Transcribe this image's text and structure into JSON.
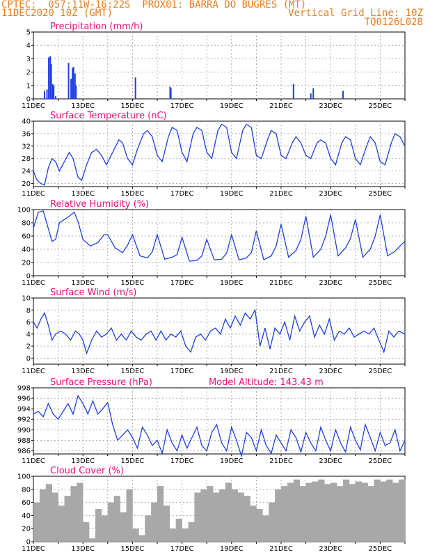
{
  "header": {
    "left_line1": "CPTEC:  057:11W-16:22S  PROX01: BARRA DO BUGRES (MT)",
    "left_line2": "11DEC2020 10Z (GMT)",
    "right_line2": "Vertical Grid Line: 10Z",
    "right_line3": "TQ0126L028"
  },
  "colors": {
    "header": "#e87d1e",
    "title": "#e8107c",
    "series": "#1f3fe0",
    "cloud": "#a8a8a8",
    "grid": "#9a9a9a"
  },
  "chart_data": [
    {
      "id": "precip",
      "type": "bar",
      "title": "Precipitation (mm/h)",
      "ylim": [
        0,
        5
      ],
      "yticks": [
        0,
        1,
        2,
        3,
        4,
        5
      ],
      "xticklabels": [
        "11DEC",
        "13DEC",
        "15DEC",
        "17DEC",
        "19DEC",
        "21DEC",
        "23DEC",
        "25DEC"
      ],
      "x_days": [
        0.45,
        0.55,
        0.62,
        0.68,
        0.72,
        0.78,
        0.82,
        0.9,
        1.42,
        1.52,
        1.58,
        1.62,
        1.68,
        1.72,
        4.12,
        5.52,
        5.55,
        10.5,
        11.2,
        11.3,
        12.5
      ],
      "values": [
        0.6,
        0.7,
        3.1,
        3.2,
        2.6,
        1.1,
        1.0,
        0.2,
        2.7,
        1.5,
        2.3,
        2.4,
        1.9,
        1.0,
        1.6,
        0.9,
        0.8,
        1.1,
        0.4,
        0.8,
        0.6
      ]
    },
    {
      "id": "temp",
      "type": "line",
      "title": "Surface Temperature (nC)",
      "ylim": [
        19,
        40
      ],
      "yticks": [
        20,
        24,
        28,
        32,
        36,
        40
      ],
      "xticklabels": [
        "11DEC",
        "13DEC",
        "15DEC",
        "17DEC",
        "19DEC",
        "21DEC",
        "23DEC",
        "25DEC"
      ],
      "x_days": [
        0,
        0.15,
        0.3,
        0.45,
        0.6,
        0.75,
        0.9,
        1.05,
        1.25,
        1.45,
        1.6,
        1.8,
        1.95,
        2.15,
        2.35,
        2.55,
        2.75,
        2.95,
        3.2,
        3.45,
        3.6,
        3.8,
        4.0,
        4.2,
        4.45,
        4.6,
        4.8,
        5.0,
        5.2,
        5.45,
        5.6,
        5.8,
        6.0,
        6.2,
        6.45,
        6.6,
        6.8,
        7.0,
        7.2,
        7.45,
        7.6,
        7.8,
        8.0,
        8.2,
        8.45,
        8.6,
        8.8,
        9.0,
        9.2,
        9.45,
        9.6,
        9.8,
        10.0,
        10.2,
        10.45,
        10.6,
        10.8,
        11.0,
        11.2,
        11.45,
        11.6,
        11.8,
        12.0,
        12.2,
        12.45,
        12.6,
        12.8,
        13.0,
        13.2,
        13.45,
        13.6,
        13.8,
        14.0,
        14.2,
        14.45,
        14.6,
        14.8,
        15.0
      ],
      "values": [
        24,
        21,
        20,
        19.5,
        25,
        28,
        27,
        24,
        27,
        30,
        28,
        22,
        21,
        26,
        30,
        31,
        29,
        26,
        30,
        34,
        33,
        28,
        26,
        31,
        36,
        37,
        35,
        29,
        27,
        35,
        38,
        37,
        30,
        27,
        36,
        38,
        37,
        30,
        28,
        37,
        39,
        38,
        30,
        28,
        37,
        39,
        38,
        29,
        28,
        34,
        37,
        36,
        29,
        28,
        33,
        35,
        33,
        29,
        28,
        33,
        34,
        33,
        28,
        26,
        33,
        35,
        34,
        28,
        26,
        32,
        35,
        33,
        27,
        26,
        33,
        36,
        35,
        32
      ]
    },
    {
      "id": "rh",
      "type": "line",
      "title": "Relative Humidity (%)",
      "ylim": [
        0,
        100
      ],
      "yticks": [
        0,
        20,
        40,
        60,
        80,
        100
      ],
      "xticklabels": [
        "11DEC",
        "13DEC",
        "15DEC",
        "17DEC",
        "19DEC",
        "21DEC",
        "23DEC",
        "25DEC"
      ],
      "x_days": [
        0,
        0.2,
        0.4,
        0.55,
        0.75,
        0.9,
        1.05,
        1.25,
        1.45,
        1.65,
        1.8,
        2.0,
        2.3,
        2.6,
        2.85,
        3.0,
        3.3,
        3.6,
        3.8,
        4.0,
        4.3,
        4.6,
        4.8,
        5.0,
        5.3,
        5.6,
        5.8,
        6.0,
        6.3,
        6.6,
        6.8,
        7.0,
        7.3,
        7.6,
        7.8,
        8.0,
        8.3,
        8.6,
        8.8,
        9.0,
        9.3,
        9.6,
        9.8,
        10.0,
        10.3,
        10.6,
        10.8,
        11.0,
        11.3,
        11.6,
        11.8,
        12.0,
        12.3,
        12.6,
        12.8,
        13.0,
        13.3,
        13.6,
        13.8,
        14.0,
        14.3,
        14.6,
        14.8,
        15.0
      ],
      "values": [
        72,
        96,
        98,
        78,
        52,
        55,
        80,
        85,
        90,
        96,
        82,
        55,
        45,
        50,
        62,
        62,
        42,
        35,
        46,
        62,
        30,
        27,
        36,
        62,
        25,
        28,
        32,
        58,
        22,
        23,
        30,
        55,
        24,
        25,
        34,
        62,
        24,
        27,
        35,
        68,
        24,
        30,
        45,
        78,
        28,
        38,
        55,
        90,
        28,
        40,
        60,
        92,
        30,
        42,
        56,
        85,
        28,
        40,
        60,
        92,
        30,
        37,
        45,
        52
      ]
    },
    {
      "id": "wind",
      "type": "line",
      "title": "Surface Wind (m/s)",
      "ylim": [
        -1,
        10
      ],
      "yticks": [
        0,
        2,
        4,
        6,
        8,
        10
      ],
      "xticklabels": [
        "11DEC",
        "13DEC",
        "15DEC",
        "17DEC",
        "19DEC",
        "21DEC",
        "23DEC",
        "25DEC"
      ],
      "x_days": [
        0,
        0.15,
        0.3,
        0.45,
        0.6,
        0.75,
        0.9,
        1.1,
        1.3,
        1.5,
        1.7,
        1.85,
        2.0,
        2.15,
        2.35,
        2.55,
        2.75,
        2.95,
        3.15,
        3.35,
        3.55,
        3.75,
        3.95,
        4.15,
        4.35,
        4.55,
        4.75,
        4.95,
        5.15,
        5.35,
        5.55,
        5.75,
        5.95,
        6.15,
        6.35,
        6.55,
        6.75,
        6.95,
        7.15,
        7.35,
        7.55,
        7.75,
        7.95,
        8.15,
        8.35,
        8.55,
        8.75,
        8.95,
        9.15,
        9.35,
        9.55,
        9.75,
        9.95,
        10.15,
        10.35,
        10.55,
        10.75,
        10.95,
        11.15,
        11.35,
        11.55,
        11.75,
        11.95,
        12.15,
        12.35,
        12.55,
        12.75,
        12.95,
        13.15,
        13.35,
        13.55,
        13.75,
        13.95,
        14.15,
        14.35,
        14.55,
        14.75,
        15.0
      ],
      "values": [
        6,
        5,
        6.5,
        7.5,
        5.5,
        3,
        4,
        4.5,
        4,
        3,
        4.5,
        4,
        3,
        0.8,
        3,
        4.5,
        3.5,
        4,
        5,
        3,
        4,
        3,
        4.5,
        3.5,
        3,
        4,
        4.5,
        3,
        4.5,
        3,
        4,
        3.5,
        4.5,
        2,
        1,
        3.5,
        4,
        3,
        4.5,
        5,
        4,
        6.5,
        5,
        7,
        5.5,
        7.5,
        6.5,
        8,
        2,
        5,
        1.5,
        5,
        4,
        6,
        3,
        7,
        4.5,
        6,
        7,
        3.5,
        5.5,
        4,
        6.5,
        3,
        4.5,
        4,
        5,
        3.5,
        4,
        4.5,
        4,
        5,
        3,
        1,
        4.5,
        3.5,
        4.5,
        4
      ]
    },
    {
      "id": "pressure",
      "type": "line",
      "title": "Surface Pressure (hPa)",
      "annotation": "Model Altitude: 143.43 m",
      "ylim": [
        985.4,
        998
      ],
      "yticks": [
        986,
        988,
        990,
        992,
        994,
        996,
        998
      ],
      "xticklabels": [
        "11DEC",
        "13DEC",
        "15DEC",
        "17DEC",
        "19DEC",
        "21DEC",
        "23DEC",
        "25DEC"
      ],
      "x_days": [
        0,
        0.2,
        0.4,
        0.6,
        0.8,
        1.0,
        1.2,
        1.4,
        1.6,
        1.8,
        2.0,
        2.2,
        2.4,
        2.6,
        2.8,
        3.0,
        3.2,
        3.4,
        3.6,
        3.8,
        4.0,
        4.2,
        4.4,
        4.6,
        4.8,
        5.0,
        5.2,
        5.4,
        5.6,
        5.8,
        6.0,
        6.2,
        6.4,
        6.6,
        6.8,
        7.0,
        7.2,
        7.4,
        7.6,
        7.8,
        8.0,
        8.2,
        8.4,
        8.6,
        8.8,
        9.0,
        9.2,
        9.4,
        9.6,
        9.8,
        10.0,
        10.2,
        10.4,
        10.6,
        10.8,
        11.0,
        11.2,
        11.4,
        11.6,
        11.8,
        12.0,
        12.2,
        12.4,
        12.6,
        12.8,
        13.0,
        13.2,
        13.4,
        13.6,
        13.8,
        14.0,
        14.2,
        14.4,
        14.6,
        14.8,
        15.0
      ],
      "values": [
        993,
        993.5,
        992.5,
        995,
        993,
        992,
        993.5,
        995,
        993,
        996.5,
        995,
        993,
        995.5,
        993,
        994,
        995.2,
        991,
        988,
        989,
        990,
        988.5,
        986.5,
        990.5,
        989,
        987,
        988,
        985.5,
        990,
        987.5,
        986,
        989,
        986.5,
        988.5,
        990.5,
        987,
        986,
        989.5,
        991,
        987.5,
        986,
        990.5,
        988,
        985,
        989.5,
        988.5,
        986,
        990,
        987,
        985.5,
        989,
        987.5,
        986,
        990,
        988.5,
        985.8,
        989.5,
        987.5,
        986,
        990.5,
        988,
        986,
        990,
        987.5,
        985.8,
        990.5,
        988,
        986.2,
        991,
        988.5,
        986,
        989.5,
        987,
        987.5,
        990,
        986,
        988
      ]
    },
    {
      "id": "cloud",
      "type": "bar",
      "title": "Cloud Cover (%)",
      "ylim": [
        0,
        100
      ],
      "yticks": [
        0,
        20,
        40,
        60,
        80,
        100
      ],
      "xticklabels": [
        "11DEC",
        "13DEC",
        "15DEC",
        "17DEC",
        "19DEC",
        "21DEC",
        "23DEC",
        "25DEC"
      ],
      "x_days": [
        0,
        0.25,
        0.5,
        0.75,
        1.0,
        1.25,
        1.5,
        1.75,
        2.0,
        2.25,
        2.5,
        2.75,
        3.0,
        3.25,
        3.5,
        3.75,
        4.0,
        4.25,
        4.5,
        4.75,
        5.0,
        5.25,
        5.5,
        5.75,
        6.0,
        6.25,
        6.5,
        6.75,
        7.0,
        7.25,
        7.5,
        7.75,
        8.0,
        8.25,
        8.5,
        8.75,
        9.0,
        9.25,
        9.5,
        9.75,
        10.0,
        10.25,
        10.5,
        10.75,
        11.0,
        11.25,
        11.5,
        11.75,
        12.0,
        12.25,
        12.5,
        12.75,
        13.0,
        13.25,
        13.5,
        13.75,
        14.0,
        14.25,
        14.5,
        14.75
      ],
      "values": [
        60,
        80,
        88,
        75,
        55,
        70,
        85,
        90,
        30,
        5,
        50,
        40,
        60,
        70,
        45,
        80,
        20,
        10,
        40,
        60,
        85,
        55,
        20,
        35,
        20,
        30,
        75,
        80,
        85,
        75,
        80,
        90,
        80,
        75,
        70,
        55,
        50,
        40,
        60,
        80,
        85,
        90,
        95,
        85,
        90,
        92,
        95,
        88,
        90,
        85,
        95,
        88,
        92,
        90,
        85,
        95,
        92,
        95,
        90,
        95
      ]
    }
  ]
}
